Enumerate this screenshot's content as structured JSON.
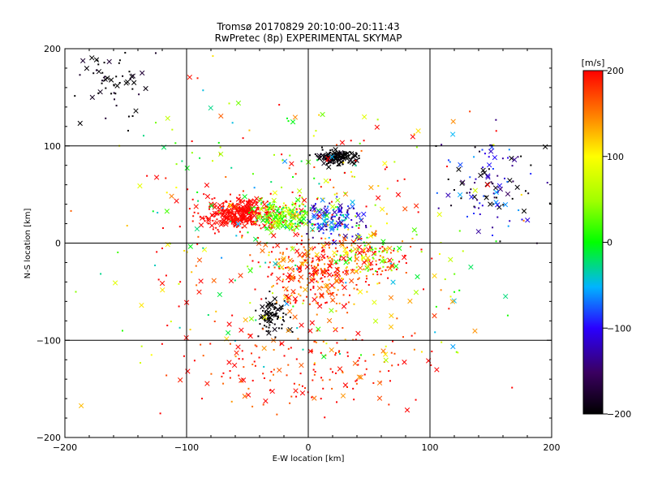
{
  "chart_data": {
    "type": "scatter",
    "title": "Tromsø 20170829 20:10:00–20:11:43",
    "subtitle": "RwPretec (8p) EXPERIMENTAL SKYMAP",
    "xlabel": "E-W location [km]",
    "ylabel": "N-S location [km]",
    "xlim": [
      -200,
      200
    ],
    "ylim": [
      -200,
      200
    ],
    "xticks": [
      -200,
      -100,
      0,
      100,
      200
    ],
    "yticks": [
      -200,
      -100,
      0,
      100,
      200
    ],
    "grid": true,
    "markers": [
      "dot",
      "x"
    ],
    "colorbar": {
      "label": "[m/s]",
      "range": [
        -200,
        200
      ],
      "ticks": [
        200,
        100,
        0,
        -100,
        -200
      ],
      "colormap": "black-purple-blue-cyan-green-yellow-orange-red"
    },
    "clusters": [
      {
        "center": [
          -55,
          30
        ],
        "spread": [
          28,
          13
        ],
        "count": 380,
        "velocity": 200,
        "velocity_spread": 10
      },
      {
        "center": [
          25,
          88
        ],
        "spread": [
          14,
          6
        ],
        "count": 160,
        "velocity": -200,
        "velocity_spread": 15
      },
      {
        "center": [
          -20,
          28
        ],
        "spread": [
          20,
          13
        ],
        "count": 190,
        "velocity": 30,
        "velocity_spread": 60
      },
      {
        "center": [
          20,
          25
        ],
        "spread": [
          18,
          16
        ],
        "count": 150,
        "velocity": -90,
        "velocity_spread": 70
      },
      {
        "center": [
          -28,
          -75
        ],
        "spread": [
          12,
          16
        ],
        "count": 90,
        "velocity": -200,
        "velocity_spread": 10
      },
      {
        "center": [
          10,
          -30
        ],
        "spread": [
          40,
          35
        ],
        "count": 300,
        "velocity": 180,
        "velocity_spread": 60
      },
      {
        "center": [
          50,
          -15
        ],
        "spread": [
          25,
          18
        ],
        "count": 120,
        "velocity": 120,
        "velocity_spread": 120
      },
      {
        "center": [
          0,
          -130
        ],
        "spread": [
          80,
          40
        ],
        "count": 160,
        "velocity": 190,
        "velocity_spread": 50
      },
      {
        "center": [
          150,
          60
        ],
        "spread": [
          35,
          40
        ],
        "count": 110,
        "velocity": -150,
        "velocity_spread": 100
      },
      {
        "center": [
          -160,
          160
        ],
        "spread": [
          30,
          30
        ],
        "count": 60,
        "velocity": -200,
        "velocity_spread": 30
      },
      {
        "center": [
          0,
          0
        ],
        "spread": [
          130,
          130
        ],
        "count": 420,
        "velocity": 100,
        "velocity_spread": 160
      }
    ]
  }
}
